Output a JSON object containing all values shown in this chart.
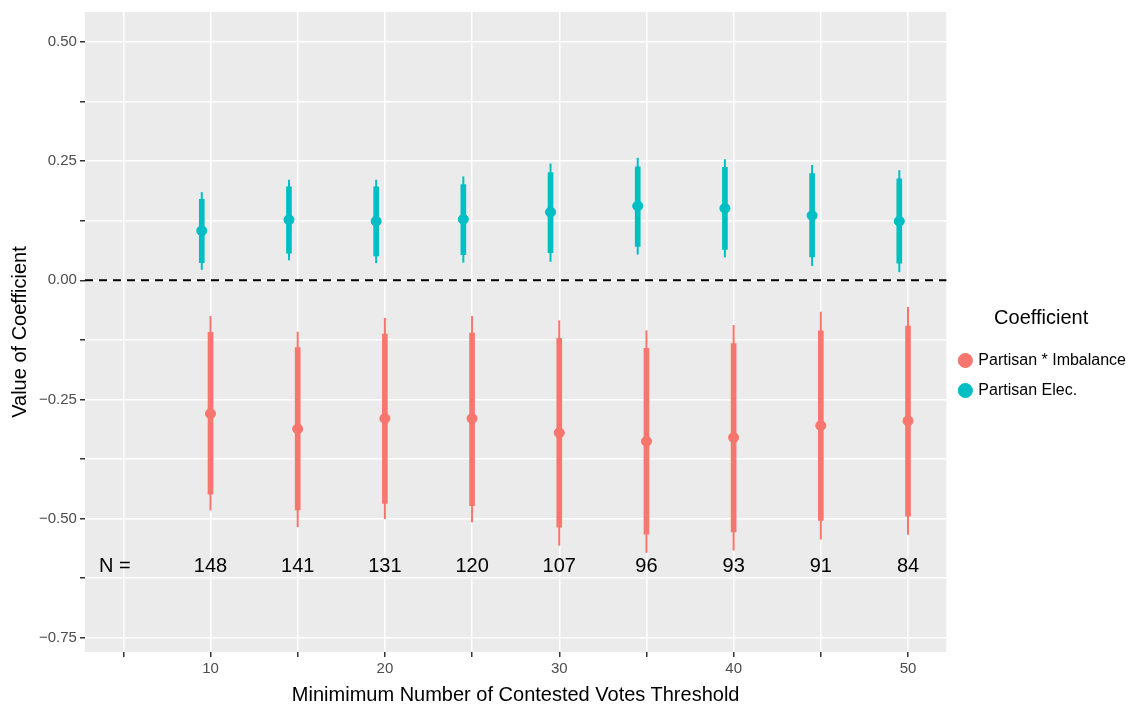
{
  "chart_data": {
    "type": "scatter",
    "xlabel": "Minimimum Number of Contested Votes Threshold",
    "ylabel": "Value of Coefficient",
    "legend_title": "Coefficient",
    "legend": "right",
    "grid": true,
    "marker": "circle",
    "xlim": [
      2.8,
      52.2
    ],
    "xticks": [
      {
        "value": 5,
        "label": null
      },
      10,
      {
        "value": 15,
        "label": null
      },
      20,
      {
        "value": 25,
        "label": null
      },
      30,
      {
        "value": 35,
        "label": null
      },
      40,
      {
        "value": 45,
        "label": null
      },
      50
    ],
    "ylim": [
      -0.78,
      0.563
    ],
    "yticks": [
      {
        "value": -0.75,
        "label": "−0.75"
      },
      {
        "value": -0.625,
        "label": null
      },
      {
        "value": -0.5,
        "label": "−0.50"
      },
      {
        "value": -0.375,
        "label": null
      },
      {
        "value": -0.25,
        "label": "−0.25"
      },
      {
        "value": -0.125,
        "label": null
      },
      {
        "value": 0,
        "label": "0.00"
      },
      {
        "value": 0.125,
        "label": null
      },
      {
        "value": 0.25,
        "label": "0.25"
      },
      {
        "value": 0.375,
        "label": null
      },
      {
        "value": 0.5,
        "label": "0.50"
      }
    ],
    "series": [
      {
        "color": "#f8766d",
        "type": "bar",
        "x": [
          10,
          15,
          20,
          25,
          30,
          35,
          40,
          45,
          50
        ],
        "base": [
          -0.449,
          -0.482,
          -0.468,
          -0.473,
          -0.518,
          -0.533,
          -0.528,
          -0.504,
          -0.495
        ],
        "values": [
          0.34,
          0.341,
          0.355,
          0.362,
          0.396,
          0.39,
          0.395,
          0.398,
          0.399
        ]
      },
      {
        "color": "#00bfc4",
        "type": "bar",
        "x": [
          9.5,
          14.5,
          19.5,
          24.5,
          29.5,
          34.5,
          39.5,
          44.5,
          49.5
        ],
        "base": [
          0.037,
          0.057,
          0.051,
          0.054,
          0.058,
          0.071,
          0.065,
          0.049,
          0.036
        ],
        "values": [
          0.133,
          0.139,
          0.145,
          0.147,
          0.168,
          0.167,
          0.172,
          0.175,
          0.177
        ]
      },
      {
        "name": "Partisan * Imbalance",
        "color": "#f8766d",
        "x": [
          10,
          15,
          20,
          25,
          30,
          35,
          40,
          45,
          50
        ],
        "values": [
          -0.28,
          -0.312,
          -0.29,
          -0.29,
          -0.32,
          -0.338,
          -0.33,
          -0.305,
          -0.295
        ],
        "errors": [
          [
            -0.483,
            -0.075
          ],
          [
            -0.518,
            -0.108
          ],
          [
            -0.501,
            -0.079
          ],
          [
            -0.508,
            -0.075
          ],
          [
            -0.557,
            -0.084
          ],
          [
            -0.572,
            -0.105
          ],
          [
            -0.567,
            -0.094
          ],
          [
            -0.544,
            -0.066
          ],
          [
            -0.534,
            -0.056
          ]
        ]
      },
      {
        "name": "Partisan Elec.",
        "color": "#00bfc4",
        "x": [
          9.5,
          14.5,
          19.5,
          24.5,
          29.5,
          34.5,
          39.5,
          44.5,
          49.5
        ],
        "values": [
          0.104,
          0.127,
          0.124,
          0.128,
          0.143,
          0.156,
          0.151,
          0.136,
          0.124
        ],
        "errors": [
          [
            0.022,
            0.185
          ],
          [
            0.042,
            0.211
          ],
          [
            0.036,
            0.211
          ],
          [
            0.037,
            0.218
          ],
          [
            0.039,
            0.245
          ],
          [
            0.054,
            0.257
          ],
          [
            0.048,
            0.254
          ],
          [
            0.03,
            0.242
          ],
          [
            0.017,
            0.231
          ]
        ]
      }
    ],
    "ref_lines": [
      {
        "axis": "y",
        "value": 0,
        "color": "#000000",
        "line_style": "dashed"
      }
    ],
    "annotations": [
      "N =",
      "148",
      "141",
      "131",
      "120",
      "107",
      "96",
      "93",
      "91",
      "84"
    ]
  }
}
